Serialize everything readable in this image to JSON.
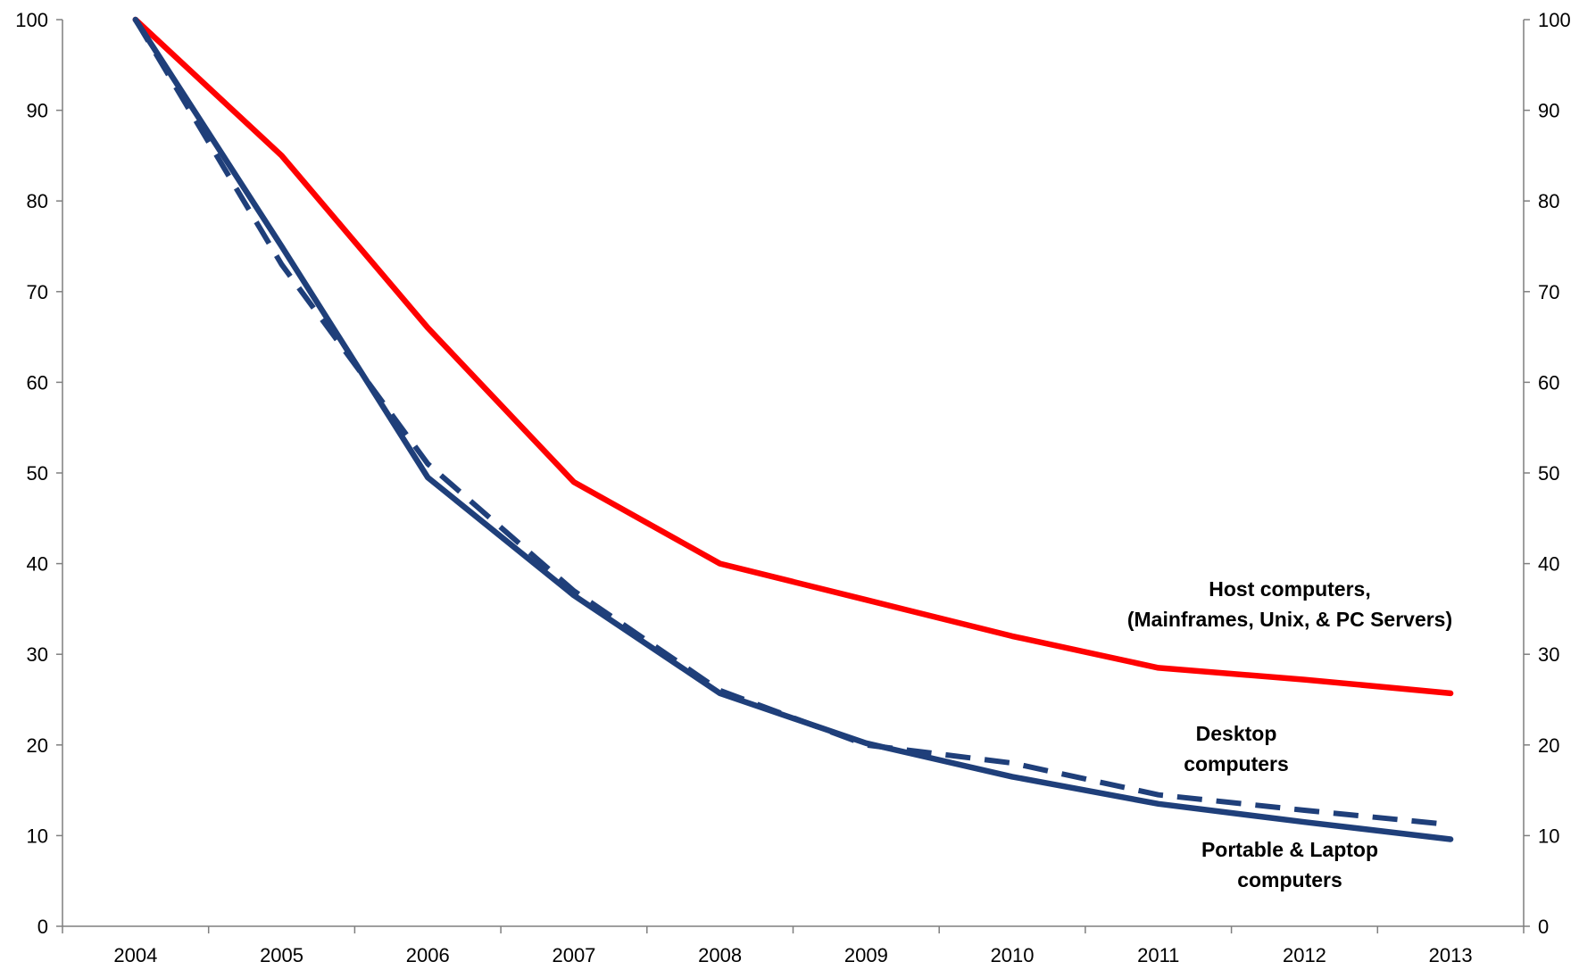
{
  "chart_data": {
    "type": "line",
    "title": "",
    "xlabel": "",
    "ylabel": "",
    "x": [
      "2004",
      "2005",
      "2006",
      "2007",
      "2008",
      "2009",
      "2010",
      "2011",
      "2012",
      "2013"
    ],
    "ylim": [
      0,
      100
    ],
    "y_ticks": [
      0,
      10,
      20,
      30,
      40,
      50,
      60,
      70,
      80,
      90,
      100
    ],
    "y2_ticks": [
      0,
      10,
      20,
      30,
      40,
      50,
      60,
      70,
      80,
      90,
      100
    ],
    "grid": false,
    "legend": "none",
    "series": [
      {
        "name": "Host computers, (Mainframes, Unix, & PC Servers)",
        "color": "#ff0000",
        "style": "solid",
        "values": [
          100,
          85,
          66,
          49,
          40,
          36,
          32,
          28.5,
          27.2,
          25.7
        ]
      },
      {
        "name": "Desktop computers",
        "color": "#1f3f7a",
        "style": "dashed",
        "values": [
          100,
          73,
          51,
          37,
          26,
          20,
          18,
          14.5,
          12.8,
          11.2
        ]
      },
      {
        "name": "Portable & Laptop computers",
        "color": "#1f3f7a",
        "style": "solid",
        "values": [
          100,
          75,
          49.5,
          36.5,
          25.7,
          20.2,
          16.5,
          13.5,
          11.5,
          9.6
        ]
      }
    ],
    "annotations": [
      {
        "lines": [
          "Host computers,",
          "(Mainframes, Unix, & PC Servers)"
        ],
        "series": 0
      },
      {
        "lines": [
          "Desktop",
          "computers"
        ],
        "series": 1
      },
      {
        "lines": [
          "Portable & Laptop",
          "computers"
        ],
        "series": 2
      }
    ]
  }
}
